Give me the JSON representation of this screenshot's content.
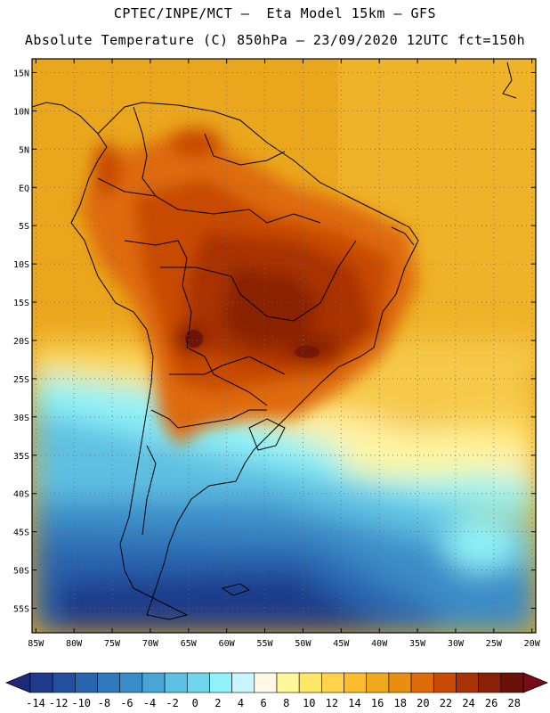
{
  "header": {
    "line1": "CPTEC/INPE/MCT –  Eta Model 15km – GFS",
    "line2": "Absolute Temperature (C) 850hPa – 23/09/2020 12UTC fct=150h"
  },
  "map": {
    "lat_labels": [
      "15N",
      "10N",
      "5N",
      "EQ",
      "5S",
      "10S",
      "15S",
      "20S",
      "25S",
      "30S",
      "35S",
      "40S",
      "45S",
      "50S",
      "55S"
    ],
    "lon_labels": [
      "85W",
      "80W",
      "75W",
      "70W",
      "65W",
      "60W",
      "55W",
      "50W",
      "45W",
      "40W",
      "35W",
      "30W",
      "25W",
      "20W"
    ],
    "lat_values": [
      15,
      10,
      5,
      0,
      -5,
      -10,
      -15,
      -20,
      -25,
      -30,
      -35,
      -40,
      -45,
      -50,
      -55
    ],
    "lon_values": [
      -85,
      -80,
      -75,
      -70,
      -65,
      -60,
      -55,
      -50,
      -45,
      -40,
      -35,
      -30,
      -25,
      -20
    ],
    "extent": {
      "lon_min": -85.5,
      "lon_max": -19.5,
      "lat_max": 16.8,
      "lat_min": -58.2
    }
  },
  "colorbar": {
    "labels": [
      "-14",
      "-12",
      "-10",
      "-8",
      "-6",
      "-4",
      "-2",
      "0",
      "2",
      "4",
      "6",
      "8",
      "10",
      "12",
      "14",
      "16",
      "18",
      "20",
      "22",
      "24",
      "26",
      "28"
    ],
    "colors": [
      "#1f3a8a",
      "#23509e",
      "#2a66b0",
      "#3079bd",
      "#3a8cc8",
      "#48a6d6",
      "#5ec0e2",
      "#6fd6ee",
      "#8ff2f8",
      "#c8f4fb",
      "#fff8e6",
      "#fff79a",
      "#ffe667",
      "#ffd24a",
      "#fbbd2e",
      "#f2a81d",
      "#ea8e12",
      "#de6a08",
      "#c84a04",
      "#a83204",
      "#8a2106",
      "#6a1209"
    ],
    "under_color": "#1e2a78",
    "over_color": "#7a0a18"
  }
}
